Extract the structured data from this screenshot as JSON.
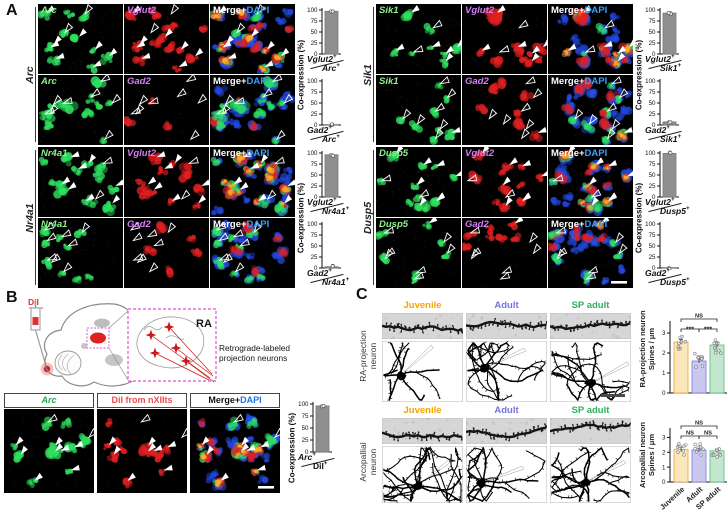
{
  "plus": "+",
  "merge": {
    "white": "Merge+",
    "blue": "DAPI"
  },
  "axis": {
    "co_label": "Co-expression (%)"
  },
  "colors": {
    "green_label": "#8df28d",
    "magenta_label": "#d27df2",
    "dapi_blue": "#35a2ff",
    "dii_red": "#e85050",
    "bar_gray": "#8f8f8f",
    "juvenile": "#f5a300",
    "adult": "#7674d6",
    "sp_adult": "#2eb05e",
    "juvenile_fill": "#fbe7b9",
    "adult_fill": "#c9c8ef",
    "sp_fill": "#c3e6cf"
  },
  "panelA": {
    "label": "A",
    "blocks": [
      {
        "row_label": "Arc",
        "rows": [
          {
            "green": "Arc",
            "probe": "Vglut2",
            "num": "Vglut2",
            "den": "Arc",
            "chart": 0
          },
          {
            "green": "Arc",
            "probe": "Gad2",
            "num": "Gad2",
            "den": "Arc",
            "chart": 1
          }
        ]
      },
      {
        "row_label": "Nr4a1",
        "rows": [
          {
            "green": "Nr4a1",
            "probe": "Vglut2",
            "num": "Vglut2",
            "den": "Nr4a1",
            "chart": 2
          },
          {
            "green": "Nr4a1",
            "probe": "Gad2",
            "num": "Gad2",
            "den": "Nr4a1",
            "chart": 3
          }
        ]
      },
      {
        "row_label": "Sik1",
        "rows": [
          {
            "green": "Sik1",
            "probe": "Vglut2",
            "num": "Vglut2",
            "den": "Sik1",
            "chart": 4
          },
          {
            "green": "Sik1",
            "probe": "Gad2",
            "num": "Gad2",
            "den": "Sik1",
            "chart": 5
          }
        ]
      },
      {
        "row_label": "Dusp5",
        "rows": [
          {
            "green": "Dusp5",
            "probe": "Vglut2",
            "num": "Vglut2",
            "den": "Dusp5",
            "chart": 6
          },
          {
            "green": "Dusp5",
            "probe": "Gad2",
            "num": "Gad2",
            "den": "Dusp5",
            "chart": 7
          }
        ]
      }
    ]
  },
  "panelB": {
    "label": "B",
    "dii": "DiI",
    "ra": "RA",
    "retro1": "Retrograde-labeled",
    "retro2": "projection neurons",
    "h_arc": "Arc",
    "h_dii": "DiI from nXIIts",
    "num": "Arc",
    "den": "DiI"
  },
  "panelC": {
    "label": "C",
    "ages": [
      "Juvenile",
      "Adult",
      "SP adult"
    ],
    "g1_l1": "RA-projection",
    "g1_l2": "neuron",
    "g2_l1": "Arcopallial",
    "g2_l2": "neuron",
    "c1_l1": "RA-projection neuron",
    "c1_l2": "Spines / μm",
    "c2_l1": "Arcopallial neuron",
    "c2_l2": "Spines / μm"
  },
  "chart_data": [
    {
      "type": "bar",
      "categories": [
        "Vglut2+/Arc+"
      ],
      "values": [
        97
      ],
      "err": [
        1.5
      ],
      "ylabel": "Co-expression (%)",
      "ylim": [
        0,
        100
      ],
      "yticks": [
        0,
        25,
        50,
        75,
        100
      ]
    },
    {
      "type": "bar",
      "categories": [
        "Gad2+/Arc+"
      ],
      "values": [
        1
      ],
      "err": [
        0.8
      ],
      "ylabel": "Co-expression (%)",
      "ylim": [
        0,
        100
      ],
      "yticks": [
        0,
        25,
        50,
        75,
        100
      ]
    },
    {
      "type": "bar",
      "categories": [
        "Vglut2+/Nr4a1+"
      ],
      "values": [
        96
      ],
      "err": [
        2
      ],
      "ylabel": "Co-expression (%)",
      "ylim": [
        0,
        100
      ],
      "yticks": [
        0,
        25,
        50,
        75,
        100
      ]
    },
    {
      "type": "bar",
      "categories": [
        "Gad2+/Nr4a1+"
      ],
      "values": [
        3
      ],
      "err": [
        1
      ],
      "ylabel": "Co-expression (%)",
      "ylim": [
        0,
        100
      ],
      "yticks": [
        0,
        25,
        50,
        75,
        100
      ]
    },
    {
      "type": "bar",
      "categories": [
        "Vglut2+/Sik1+"
      ],
      "values": [
        93
      ],
      "err": [
        3
      ],
      "ylabel": "Co-expression (%)",
      "ylim": [
        0,
        100
      ],
      "yticks": [
        0,
        25,
        50,
        75,
        100
      ]
    },
    {
      "type": "bar",
      "categories": [
        "Gad2+/Sik1+"
      ],
      "values": [
        7
      ],
      "err": [
        2
      ],
      "ylabel": "Co-expression (%)",
      "ylim": [
        0,
        100
      ],
      "yticks": [
        0,
        25,
        50,
        75,
        100
      ]
    },
    {
      "type": "bar",
      "categories": [
        "Vglut2+/Dusp5+"
      ],
      "values": [
        99
      ],
      "err": [
        0.8
      ],
      "ylabel": "Co-expression (%)",
      "ylim": [
        0,
        100
      ],
      "yticks": [
        0,
        25,
        50,
        75,
        100
      ]
    },
    {
      "type": "bar",
      "categories": [
        "Gad2+/Dusp5+"
      ],
      "values": [
        1
      ],
      "err": [
        0.8
      ],
      "ylabel": "Co-expression (%)",
      "ylim": [
        0,
        100
      ],
      "yticks": [
        0,
        25,
        50,
        75,
        100
      ]
    },
    {
      "type": "bar",
      "categories": [
        "Arc+/DiI+"
      ],
      "values": [
        96
      ],
      "err": [
        2
      ],
      "ylabel": "Co-expression (%)",
      "ylim": [
        0,
        100
      ],
      "yticks": [
        0,
        25,
        50,
        75,
        100
      ]
    },
    {
      "type": "bar",
      "categories": [
        "Juvenile",
        "Adult",
        "SP adult"
      ],
      "values": [
        2.55,
        1.6,
        2.4
      ],
      "err": [
        0.12,
        0.1,
        0.12
      ],
      "ylabel": "RA-projection neuron Spines / μm",
      "ylim": [
        0,
        3.5
      ],
      "yticks": [
        0,
        1,
        2,
        3
      ],
      "bar_colors": [
        "#fbe7b9",
        "#c9c8ef",
        "#c3e6cf"
      ],
      "bar_borders": [
        "#e8a53c",
        "#7b79d8",
        "#58b879"
      ],
      "sig": [
        {
          "a": 0,
          "b": 1,
          "label": "***"
        },
        {
          "a": 1,
          "b": 2,
          "label": "***"
        },
        {
          "a": 0,
          "b": 2,
          "label": "NS"
        }
      ]
    },
    {
      "type": "bar",
      "categories": [
        "Juvenile",
        "Adult",
        "SP adult"
      ],
      "values": [
        2.2,
        2.15,
        2.1
      ],
      "err": [
        0.15,
        0.12,
        0.12
      ],
      "ylabel": "Arcopallial neuron Spines / μm",
      "ylim": [
        0,
        3.5
      ],
      "yticks": [
        0,
        1,
        2,
        3
      ],
      "bar_colors": [
        "#fbe7b9",
        "#c9c8ef",
        "#c3e6cf"
      ],
      "bar_borders": [
        "#e8a53c",
        "#7b79d8",
        "#58b879"
      ],
      "sig": [
        {
          "a": 0,
          "b": 1,
          "label": "NS"
        },
        {
          "a": 1,
          "b": 2,
          "label": "NS"
        },
        {
          "a": 0,
          "b": 2,
          "label": "NS"
        }
      ]
    }
  ]
}
